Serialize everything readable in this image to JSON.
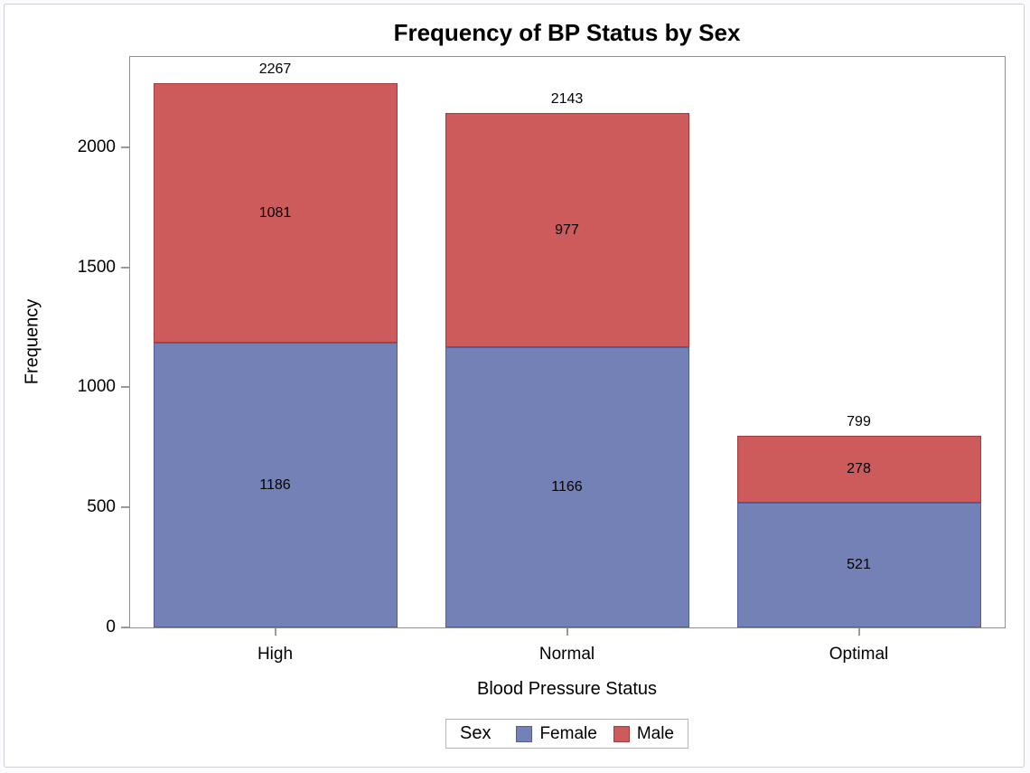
{
  "chart_data": {
    "type": "bar",
    "stacked": true,
    "title": "Frequency of BP Status by Sex",
    "xlabel": "Blood Pressure Status",
    "ylabel": "Frequency",
    "categories": [
      "High",
      "Normal",
      "Optimal"
    ],
    "series": [
      {
        "name": "Female",
        "values": [
          1186,
          1166,
          521
        ],
        "color": "#7381B6",
        "border_color": "#4F5F9E"
      },
      {
        "name": "Male",
        "values": [
          1081,
          977,
          278
        ],
        "color": "#CD5B5B",
        "border_color": "#A43E3E"
      }
    ],
    "totals": [
      2267,
      2143,
      799
    ],
    "yticks": [
      0,
      500,
      1000,
      1500,
      2000
    ],
    "ylim": [
      0,
      2380
    ],
    "legend_title": "Sex",
    "legend_position": "bottom",
    "grid": false
  }
}
